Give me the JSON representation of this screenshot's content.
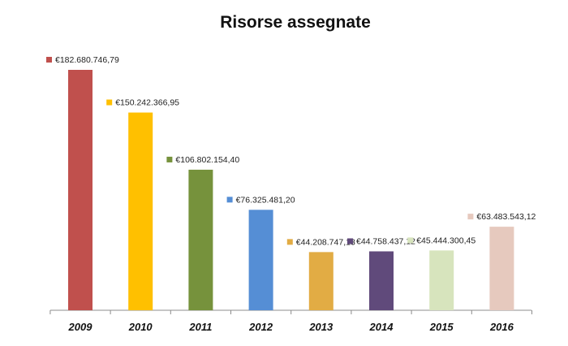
{
  "chart_data": {
    "type": "bar",
    "title": "Risorse assegnate",
    "xlabel": "",
    "ylabel": "",
    "categories": [
      "2009",
      "2010",
      "2011",
      "2012",
      "2013",
      "2014",
      "2015",
      "2016"
    ],
    "values": [
      182680746.79,
      150242366.95,
      106802154.4,
      76325481.2,
      44208747.13,
      44758437.12,
      45444300.45,
      63483543.12
    ],
    "data_labels": [
      "€182.680.746,79",
      "€150.242.366,95",
      "€106.802.154,40",
      "€76.325.481,20",
      "€44.208.747,13",
      "€44.758.437,12",
      "€45.444.300,45",
      "€63.483.543,12"
    ],
    "colors": [
      "#c0504d",
      "#ffc000",
      "#76923c",
      "#558ed5",
      "#e2ac44",
      "#604a7b",
      "#d7e4bd",
      "#e6c9be"
    ],
    "ylim": [
      0,
      182680746.79
    ],
    "grid": false,
    "legend": "none"
  }
}
